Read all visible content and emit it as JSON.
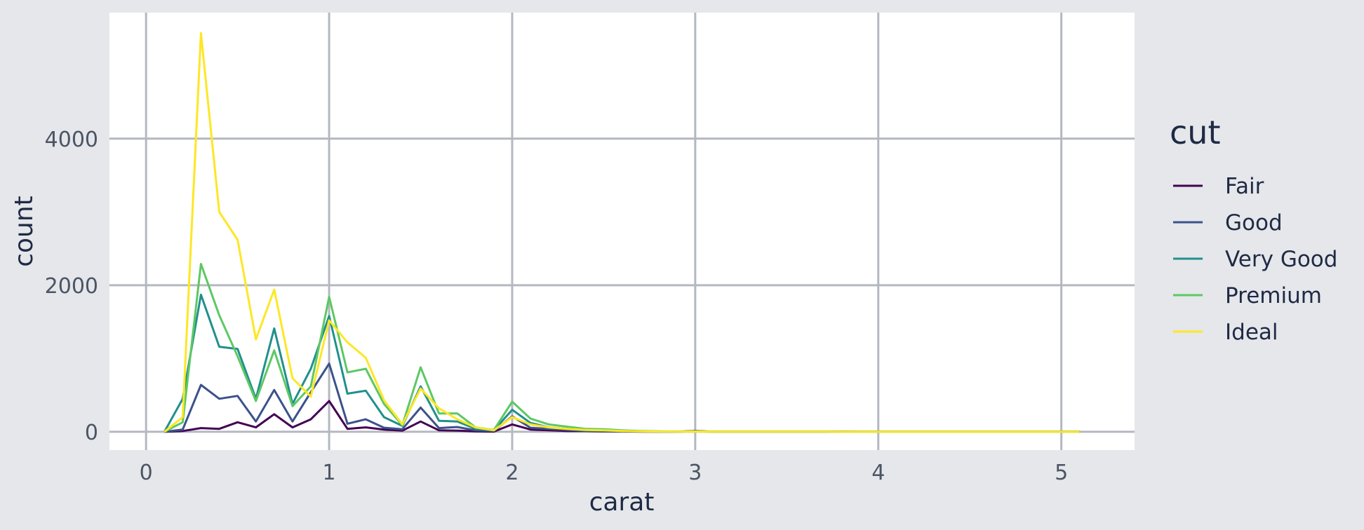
{
  "chart_data": {
    "type": "line",
    "title": "",
    "xlabel": "carat",
    "ylabel": "count",
    "xlim": [
      -0.2,
      5.4
    ],
    "ylim": [
      -250,
      5720
    ],
    "xticks": [
      0,
      1,
      2,
      3,
      4,
      5
    ],
    "yticks": [
      0,
      2000,
      4000
    ],
    "grid": true,
    "legend": {
      "title": "cut",
      "position": "right"
    },
    "x": [
      0.1,
      0.2,
      0.3,
      0.4,
      0.5,
      0.6,
      0.7,
      0.8,
      0.9,
      1.0,
      1.1,
      1.2,
      1.3,
      1.4,
      1.5,
      1.6,
      1.7,
      1.8,
      1.9,
      2.0,
      2.1,
      2.2,
      2.3,
      2.4,
      2.5,
      2.6,
      2.7,
      2.8,
      2.9,
      3.0,
      3.1,
      3.2,
      3.3,
      3.4,
      3.5,
      3.6,
      3.7,
      3.8,
      3.9,
      4.0,
      4.1,
      4.2,
      4.3,
      4.4,
      4.5,
      4.6,
      4.7,
      4.8,
      4.9,
      5.0,
      5.1
    ],
    "series": [
      {
        "name": "Fair",
        "color": "#440154",
        "values": [
          0,
          10,
          50,
          40,
          130,
          60,
          240,
          60,
          170,
          420,
          40,
          60,
          30,
          15,
          140,
          20,
          15,
          5,
          3,
          100,
          30,
          20,
          10,
          10,
          5,
          5,
          3,
          2,
          2,
          10,
          2,
          1,
          1,
          1,
          1,
          1,
          1,
          1,
          0,
          0,
          0,
          0,
          0,
          0,
          0,
          0,
          0,
          0,
          0,
          0,
          0
        ]
      },
      {
        "name": "Good",
        "color": "#3b528b",
        "values": [
          0,
          30,
          640,
          450,
          490,
          140,
          570,
          140,
          540,
          930,
          110,
          170,
          55,
          35,
          330,
          50,
          65,
          20,
          10,
          210,
          55,
          40,
          25,
          15,
          10,
          8,
          5,
          3,
          2,
          5,
          2,
          1,
          1,
          1,
          1,
          1,
          1,
          0,
          0,
          0,
          0,
          0,
          0,
          0,
          0,
          0,
          0,
          0,
          0,
          0,
          0
        ]
      },
      {
        "name": "Very Good",
        "color": "#21908c",
        "values": [
          0,
          450,
          1870,
          1160,
          1130,
          450,
          1410,
          380,
          860,
          1580,
          520,
          560,
          200,
          80,
          620,
          150,
          140,
          40,
          20,
          300,
          120,
          60,
          40,
          20,
          15,
          10,
          5,
          3,
          2,
          5,
          2,
          1,
          1,
          1,
          1,
          1,
          1,
          0,
          0,
          0,
          0,
          0,
          0,
          0,
          0,
          0,
          0,
          0,
          0,
          0,
          0
        ]
      },
      {
        "name": "Premium",
        "color": "#5dc863",
        "values": [
          0,
          130,
          2290,
          1590,
          1030,
          420,
          1110,
          350,
          620,
          1840,
          810,
          860,
          380,
          90,
          880,
          250,
          250,
          60,
          25,
          410,
          180,
          100,
          70,
          40,
          35,
          20,
          10,
          5,
          3,
          5,
          2,
          1,
          1,
          1,
          1,
          1,
          1,
          0,
          0,
          0,
          0,
          0,
          0,
          0,
          0,
          0,
          0,
          0,
          0,
          0,
          0
        ]
      },
      {
        "name": "Ideal",
        "color": "#fde725",
        "values": [
          0,
          200,
          5440,
          3000,
          2620,
          1260,
          1940,
          730,
          480,
          1520,
          1220,
          1010,
          430,
          100,
          590,
          320,
          170,
          60,
          20,
          200,
          100,
          60,
          40,
          25,
          20,
          10,
          5,
          3,
          2,
          3,
          1,
          1,
          1,
          1,
          1,
          1,
          1,
          0,
          0,
          0,
          0,
          0,
          0,
          0,
          0,
          0,
          0,
          0,
          0,
          0,
          0
        ]
      }
    ]
  }
}
